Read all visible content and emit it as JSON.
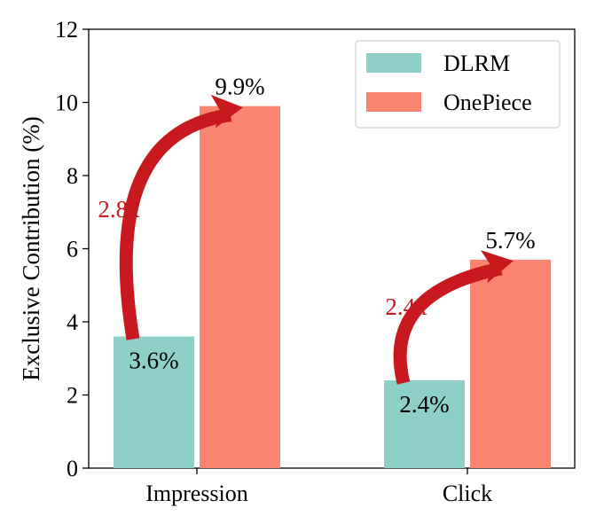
{
  "chart_data": {
    "type": "bar",
    "categories": [
      "Impression",
      "Click"
    ],
    "ylabel": "Exclusive Contribution (%)",
    "xlabel": "",
    "ylim": [
      0,
      12
    ],
    "yticks": [
      0,
      2,
      4,
      6,
      8,
      10,
      12
    ],
    "grid": false,
    "legend_position": "top-right",
    "series": [
      {
        "name": "DLRM",
        "values": [
          3.6,
          2.4
        ],
        "labels": [
          "3.6%",
          "2.4%"
        ],
        "color": "#8ecfc7"
      },
      {
        "name": "OnePiece",
        "values": [
          9.9,
          5.7
        ],
        "labels": [
          "9.9%",
          "5.7%"
        ],
        "color": "#fa8470"
      }
    ],
    "annotations": [
      {
        "category": "Impression",
        "text": "2.8x",
        "from_series": "DLRM",
        "to_series": "OnePiece"
      },
      {
        "category": "Click",
        "text": "2.4x",
        "from_series": "DLRM",
        "to_series": "OnePiece"
      }
    ],
    "arrow_color": "#c8191f",
    "ratio_label_color": "#c8191f"
  }
}
